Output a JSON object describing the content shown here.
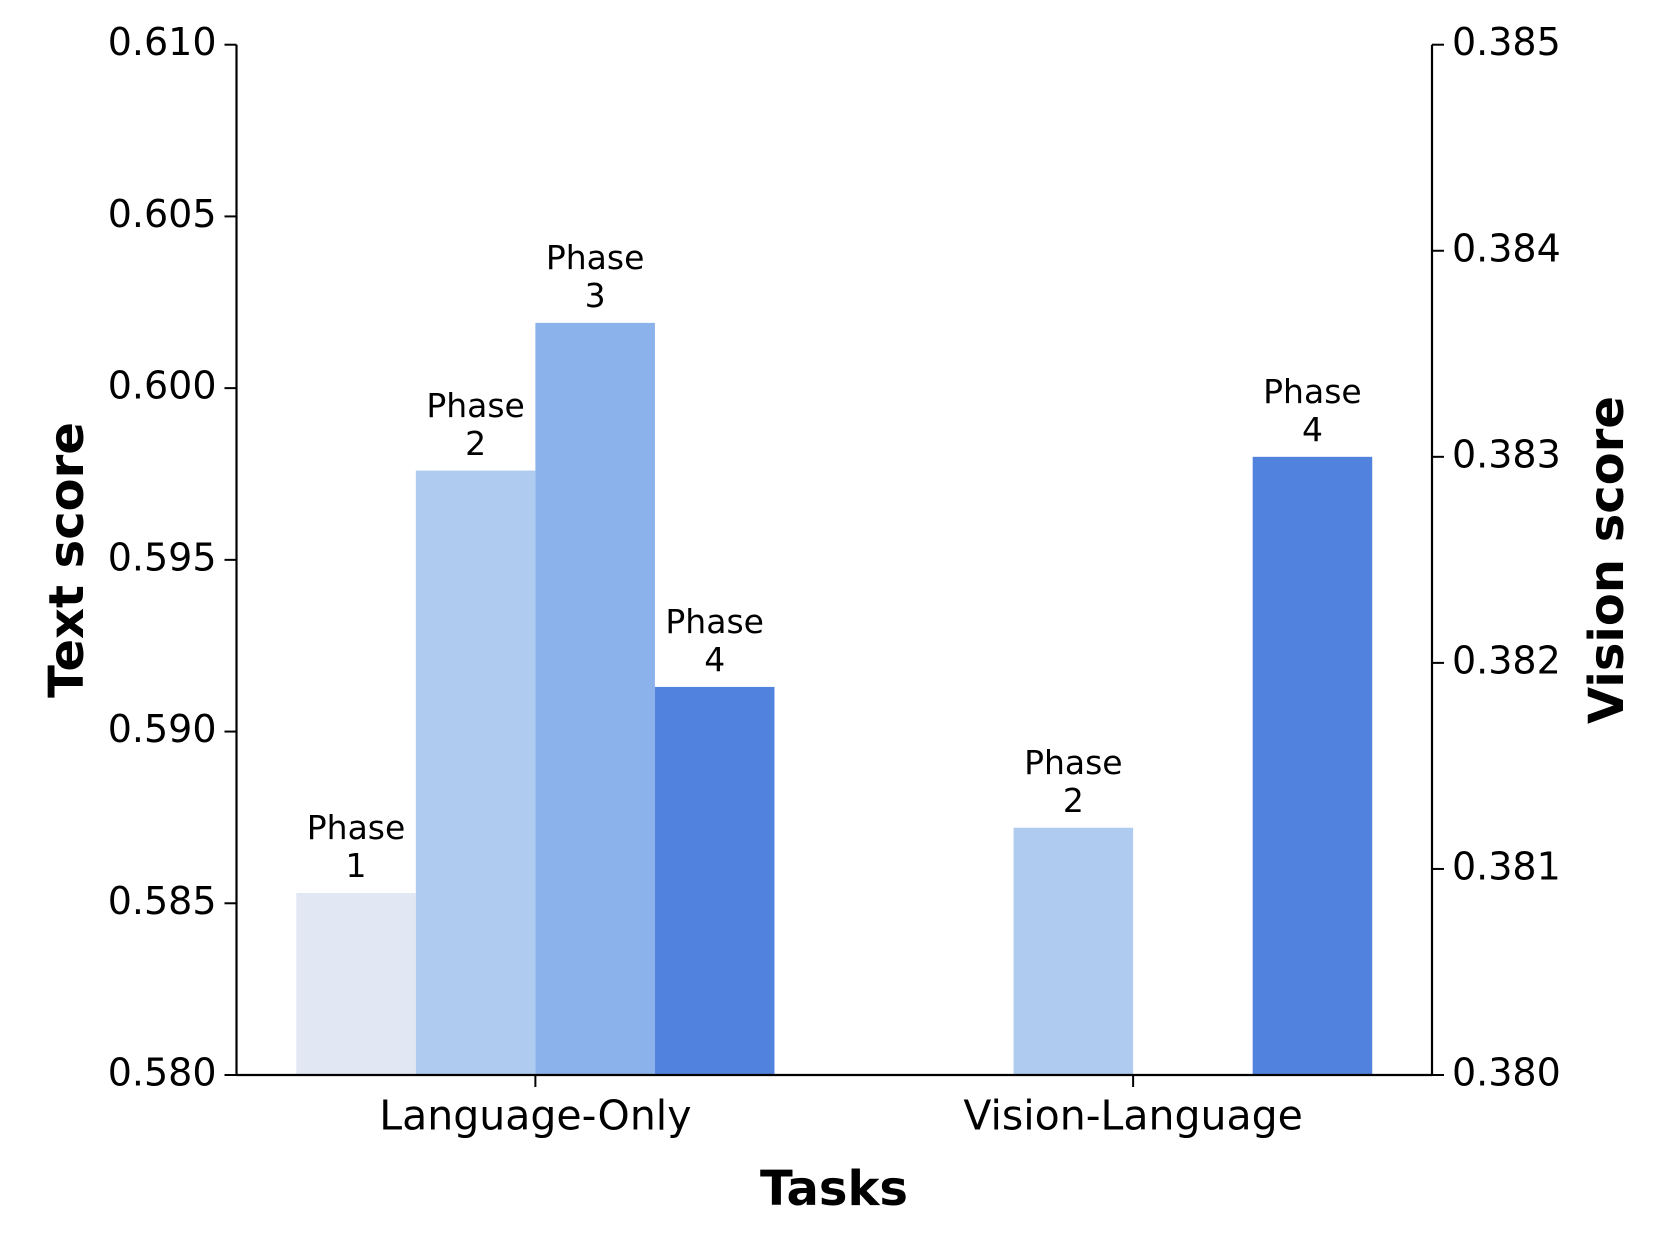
{
  "chart_data": {
    "type": "bar",
    "categories": [
      "Language-Only",
      "Vision-Language"
    ],
    "x_label": "Tasks",
    "y_label": "Text score",
    "y2_label": "Vision score",
    "ylim": [
      0.58,
      0.61
    ],
    "yticks": [
      {
        "value": 0.58,
        "label": "0.580"
      },
      0.585,
      {
        "value": 0.59,
        "label": "0.590"
      },
      0.595,
      {
        "value": 0.6,
        "label": "0.600"
      },
      0.605,
      {
        "value": 0.61,
        "label": "0.610"
      }
    ],
    "y2lim": [
      0.38,
      0.385
    ],
    "y2ticks": [
      {
        "value": 0.38,
        "label": "0.380"
      },
      0.381,
      0.382,
      0.383,
      0.384,
      0.385
    ],
    "series": [
      {
        "name": "Phase 1",
        "color": "#e1e8f4",
        "values": [
          0.5853,
          null
        ]
      },
      {
        "name": "Phase 2",
        "color": "#afcbef",
        "values": [
          0.5976,
          null
        ]
      },
      {
        "name": "Phase 3",
        "color": "#8bb2ea",
        "values": [
          0.6019,
          null
        ]
      },
      {
        "name": "Phase 4",
        "color": "#5183de",
        "values": [
          0.5913,
          null
        ]
      },
      {
        "name": "Phase 2",
        "color": "#afcbef",
        "axis": "y2",
        "values": [
          null,
          0.3812
        ]
      },
      {
        "name": "Phase 4",
        "color": "#5183de",
        "axis": "y2",
        "values": [
          null,
          0.383
        ]
      }
    ]
  }
}
